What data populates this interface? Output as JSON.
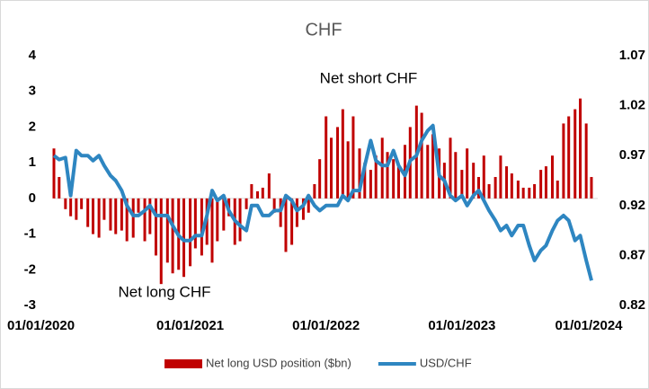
{
  "chart_data": {
    "type": "bar-line",
    "title": "CHF",
    "annotations": [
      "Net short CHF",
      "Net long CHF"
    ],
    "x": [
      "2020-01-01",
      "2020-01-15",
      "2020-02-01",
      "2020-02-15",
      "2020-03-01",
      "2020-03-15",
      "2020-04-01",
      "2020-04-15",
      "2020-05-01",
      "2020-05-15",
      "2020-06-01",
      "2020-06-15",
      "2020-07-01",
      "2020-07-15",
      "2020-08-01",
      "2020-08-15",
      "2020-09-01",
      "2020-09-15",
      "2020-10-01",
      "2020-10-15",
      "2020-11-01",
      "2020-11-15",
      "2020-12-01",
      "2020-12-15",
      "2021-01-01",
      "2021-01-15",
      "2021-02-01",
      "2021-02-15",
      "2021-03-01",
      "2021-03-15",
      "2021-04-01",
      "2021-04-15",
      "2021-05-01",
      "2021-05-15",
      "2021-06-01",
      "2021-06-15",
      "2021-07-01",
      "2021-07-15",
      "2021-08-01",
      "2021-08-15",
      "2021-09-01",
      "2021-09-15",
      "2021-10-01",
      "2021-10-15",
      "2021-11-01",
      "2021-11-15",
      "2021-12-01",
      "2021-12-15",
      "2022-01-01",
      "2022-01-15",
      "2022-02-01",
      "2022-02-15",
      "2022-03-01",
      "2022-03-15",
      "2022-04-01",
      "2022-04-15",
      "2022-05-01",
      "2022-05-15",
      "2022-06-01",
      "2022-06-15",
      "2022-07-01",
      "2022-07-15",
      "2022-08-01",
      "2022-08-15",
      "2022-09-01",
      "2022-09-15",
      "2022-10-01",
      "2022-10-15",
      "2022-11-01",
      "2022-11-15",
      "2022-12-01",
      "2022-12-15",
      "2023-01-01",
      "2023-01-15",
      "2023-02-01",
      "2023-02-15",
      "2023-03-01",
      "2023-03-15",
      "2023-04-01",
      "2023-04-15",
      "2023-05-01",
      "2023-05-15",
      "2023-06-01",
      "2023-06-15",
      "2023-07-01",
      "2023-07-15",
      "2023-08-01",
      "2023-08-15",
      "2023-09-01",
      "2023-09-15",
      "2023-10-01",
      "2023-10-15",
      "2023-11-01",
      "2023-11-15",
      "2023-12-01",
      "2023-12-15"
    ],
    "xlim": [
      "2020-01-01",
      "2024-01-01"
    ],
    "xticks": [
      {
        "value": "2020-01-01",
        "label": "01/01/2020"
      },
      {
        "value": "2021-01-01",
        "label": "01/01/2021"
      },
      {
        "value": "2022-01-01",
        "label": "01/01/2022"
      },
      {
        "value": "2023-01-01",
        "label": "01/01/2023"
      },
      {
        "value": "2024-01-01",
        "label": "01/01/2024"
      }
    ],
    "ylim": [
      -3,
      4
    ],
    "yticks": [
      -3,
      -2,
      -1,
      0,
      1,
      2,
      3,
      4
    ],
    "y2lim": [
      0.82,
      1.07
    ],
    "y2ticks": [
      0.82,
      0.87,
      0.92,
      0.97,
      1.02,
      1.07
    ],
    "series": [
      {
        "name": "Net long USD position ($bn)",
        "type": "bar",
        "color": "#c00000",
        "values": [
          1.4,
          0.6,
          -0.3,
          -0.5,
          -0.6,
          -0.3,
          -0.8,
          -1.0,
          -1.1,
          -0.6,
          -0.9,
          -1.0,
          -0.9,
          -1.2,
          -1.1,
          -0.4,
          -1.2,
          -1.0,
          -1.6,
          -2.4,
          -1.8,
          -2.1,
          -2.0,
          -2.2,
          -1.9,
          -1.4,
          -1.6,
          -1.3,
          -1.8,
          -1.2,
          -0.9,
          -0.5,
          -1.3,
          -1.2,
          -0.3,
          0.4,
          0.2,
          0.3,
          0.7,
          -0.4,
          -0.8,
          -1.5,
          -1.3,
          -0.8,
          -0.6,
          -0.4,
          0.4,
          1.1,
          2.3,
          1.7,
          2.0,
          2.5,
          1.6,
          2.3,
          1.4,
          1.0,
          0.8,
          1.2,
          1.7,
          1.3,
          1.1,
          0.9,
          1.5,
          2.0,
          2.6,
          2.4,
          1.5,
          1.8,
          1.4,
          1.0,
          1.7,
          1.3,
          0.8,
          1.4,
          1.0,
          0.6,
          1.2,
          0.4,
          0.6,
          1.2,
          0.9,
          0.7,
          0.5,
          0.3,
          0.3,
          0.4,
          0.8,
          0.9,
          1.2,
          0.5,
          2.1,
          2.3,
          2.5,
          2.8,
          2.1,
          0.6
        ]
      },
      {
        "name": "USD/CHF",
        "type": "line",
        "axis": "y2",
        "color": "#2e86c1",
        "values": [
          0.97,
          0.966,
          0.968,
          0.93,
          0.975,
          0.97,
          0.97,
          0.965,
          0.97,
          0.96,
          0.95,
          0.945,
          0.935,
          0.92,
          0.91,
          0.91,
          0.915,
          0.92,
          0.91,
          0.91,
          0.91,
          0.9,
          0.89,
          0.885,
          0.885,
          0.89,
          0.89,
          0.91,
          0.935,
          0.925,
          0.93,
          0.915,
          0.905,
          0.9,
          0.895,
          0.92,
          0.92,
          0.91,
          0.91,
          0.915,
          0.915,
          0.93,
          0.925,
          0.915,
          0.92,
          0.93,
          0.92,
          0.915,
          0.92,
          0.92,
          0.92,
          0.93,
          0.925,
          0.935,
          0.935,
          0.96,
          0.985,
          0.965,
          0.96,
          0.96,
          0.975,
          0.96,
          0.95,
          0.965,
          0.97,
          0.985,
          0.995,
          1.0,
          0.95,
          0.945,
          0.93,
          0.925,
          0.93,
          0.92,
          0.93,
          0.935,
          0.925,
          0.915,
          0.905,
          0.895,
          0.9,
          0.89,
          0.9,
          0.9,
          0.88,
          0.865,
          0.875,
          0.88,
          0.895,
          0.905,
          0.91,
          0.905,
          0.885,
          0.89,
          0.865,
          0.845
        ]
      }
    ]
  }
}
